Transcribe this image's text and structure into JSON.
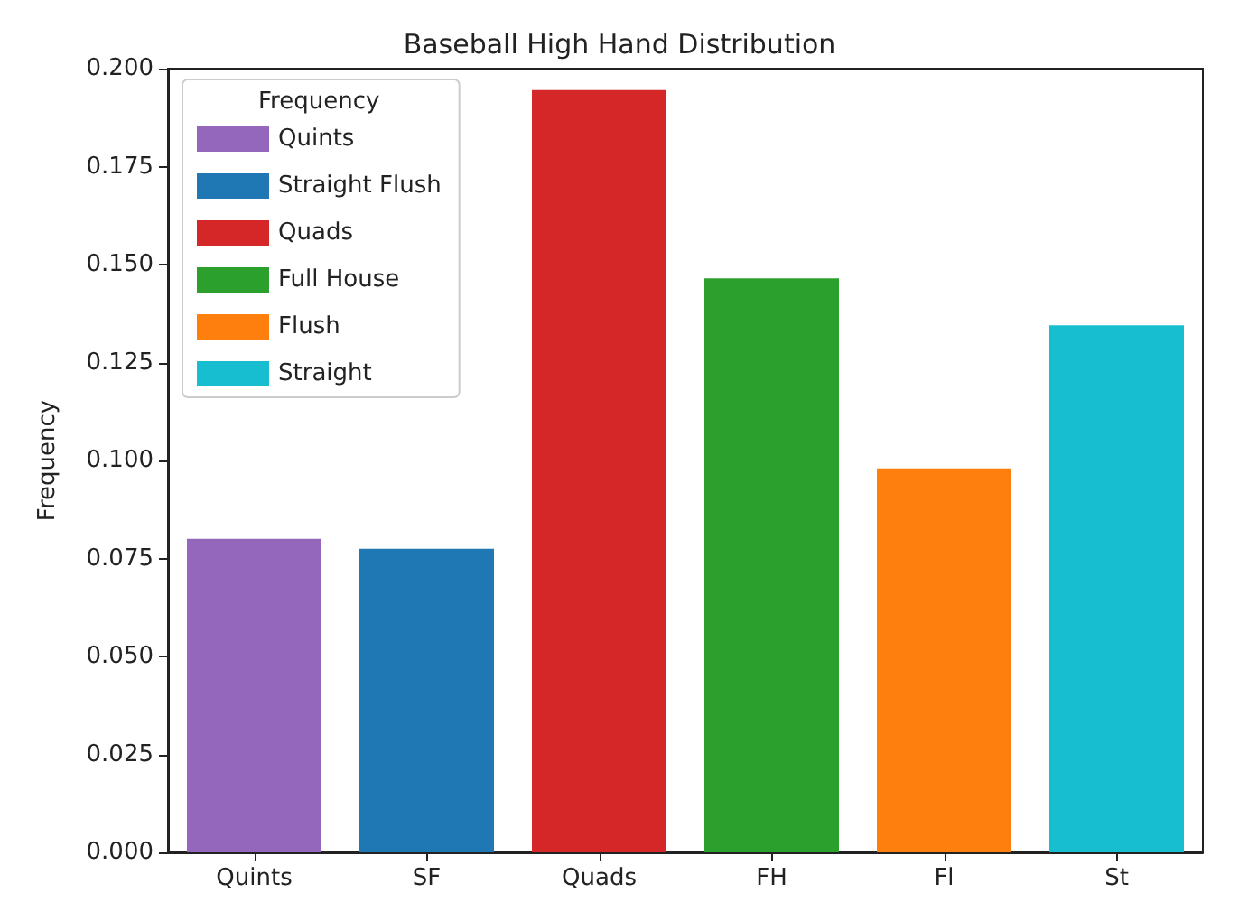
{
  "chart_data": {
    "type": "bar",
    "title": "Baseball High Hand Distribution",
    "ylabel": "Frequency",
    "legend_title": "Frequency",
    "legend": "top left",
    "grid": false,
    "categories": [
      "Quints",
      "SF",
      "Quads",
      "FH",
      "Fl",
      "St"
    ],
    "series": [
      {
        "name": "Quints",
        "color": "#9467bd",
        "values": [
          0.08,
          null,
          null,
          null,
          null,
          null
        ]
      },
      {
        "name": "Straight Flush",
        "color": "#1f77b4",
        "values": [
          null,
          0.0775,
          null,
          null,
          null,
          null
        ]
      },
      {
        "name": "Quads",
        "color": "#d62728",
        "values": [
          null,
          null,
          0.1945,
          null,
          null,
          null
        ]
      },
      {
        "name": "Full House",
        "color": "#2ca02c",
        "values": [
          null,
          null,
          null,
          0.1465,
          null,
          null
        ]
      },
      {
        "name": "Flush",
        "color": "#ff7f0e",
        "values": [
          null,
          null,
          null,
          null,
          0.098,
          null
        ]
      },
      {
        "name": "Straight",
        "color": "#17becf",
        "values": [
          null,
          null,
          null,
          null,
          null,
          0.1345
        ]
      }
    ],
    "ylim": [
      0,
      0.2
    ],
    "yticks": [
      {
        "value": 0,
        "label": "0.000"
      },
      {
        "value": 0.025,
        "label": "0.025"
      },
      {
        "value": 0.05,
        "label": "0.050"
      },
      {
        "value": 0.075,
        "label": "0.075"
      },
      {
        "value": 0.1,
        "label": "0.100"
      },
      {
        "value": 0.125,
        "label": "0.125"
      },
      {
        "value": 0.15,
        "label": "0.150"
      },
      {
        "value": 0.175,
        "label": "0.175"
      },
      {
        "value": 0.2,
        "label": "0.200"
      }
    ]
  }
}
